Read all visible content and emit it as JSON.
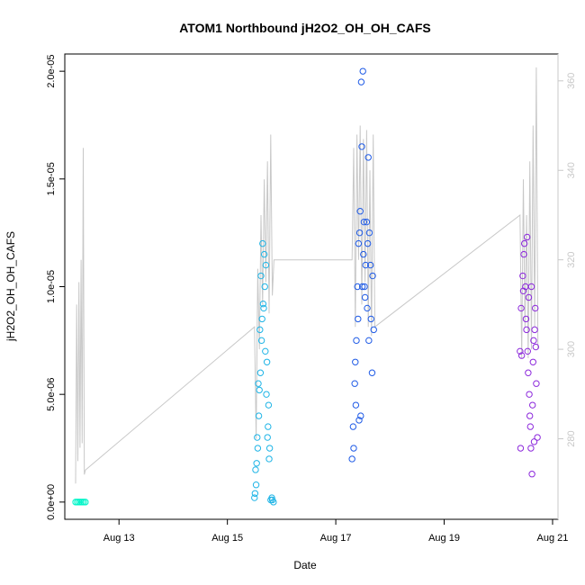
{
  "chart_data": {
    "type": "scatter",
    "title": "ATOM1 Northbound jH2O2_OH_OH_CAFS",
    "xlabel": "Date",
    "ylabel": "jH2O2_OH_OH_CAFS",
    "x_ticks": [
      "Aug 13",
      "Aug 15",
      "Aug 17",
      "Aug 19",
      "Aug 21"
    ],
    "y_ticks": [
      "0.0e+00",
      "5.0e-06",
      "1.0e-05",
      "1.5e-05",
      "2.0e-05"
    ],
    "y_right_ticks": [
      "280",
      "300",
      "320",
      "340",
      "360"
    ],
    "xlim": [
      12.0,
      21.1
    ],
    "ylim": [
      -8e-07,
      2.08e-05
    ],
    "y_right_lim": [
      262,
      366
    ],
    "grid": false,
    "colors": {
      "axis": "#000000",
      "right_axis": "#c8c8c8",
      "line": "#c8c8c8"
    },
    "scatter_series": [
      {
        "color": "#00f5c8",
        "x": [
          12.2,
          12.23,
          12.26,
          12.29,
          12.32,
          12.35,
          12.38
        ],
        "y": [
          0,
          0,
          0,
          0,
          0,
          0,
          0
        ]
      },
      {
        "color": "#1eb4e6",
        "x": [
          15.5,
          15.52,
          15.55,
          15.57,
          15.6,
          15.62,
          15.65,
          15.67,
          15.7,
          15.72,
          15.75,
          15.77,
          15.8,
          15.82,
          15.85,
          15.51,
          15.56,
          15.61,
          15.66,
          15.71,
          15.76,
          15.53,
          15.58,
          15.63,
          15.68,
          15.73,
          15.78,
          15.83,
          15.54,
          15.59,
          15.64,
          15.69,
          15.74
        ],
        "y": [
          2e-07,
          1.5e-06,
          3e-06,
          5.5e-06,
          8e-06,
          1.05e-05,
          1.2e-05,
          9e-06,
          7e-06,
          5e-06,
          3.5e-06,
          2e-06,
          1e-07,
          2e-07,
          0,
          4e-07,
          2.5e-06,
          6e-06,
          9.2e-06,
          1.1e-05,
          4.5e-06,
          8e-07,
          4e-06,
          7.5e-06,
          1.15e-05,
          6.5e-06,
          2.5e-06,
          1e-07,
          1.8e-06,
          5.2e-06,
          8.5e-06,
          1e-05,
          3e-06
        ]
      },
      {
        "color": "#1e5ae6",
        "x": [
          17.3,
          17.32,
          17.35,
          17.38,
          17.4,
          17.42,
          17.45,
          17.48,
          17.5,
          17.52,
          17.55,
          17.58,
          17.6,
          17.62,
          17.65,
          17.68,
          17.7,
          17.33,
          17.37,
          17.41,
          17.44,
          17.47,
          17.51,
          17.54,
          17.57,
          17.61,
          17.64,
          17.67,
          17.46,
          17.49,
          17.36,
          17.43,
          17.53,
          17.59
        ],
        "y": [
          2e-06,
          3.5e-06,
          5.5e-06,
          7.5e-06,
          1e-05,
          1.2e-05,
          1.35e-05,
          1.65e-05,
          2e-05,
          1.3e-05,
          1.1e-05,
          9e-06,
          1.6e-05,
          1.25e-05,
          8.5e-06,
          1.05e-05,
          8e-06,
          2.5e-06,
          4.5e-06,
          8.5e-06,
          1.25e-05,
          1.95e-05,
          1.15e-05,
          9.5e-06,
          1.3e-05,
          7.5e-06,
          1.1e-05,
          6e-06,
          4e-06,
          1e-05,
          6.5e-06,
          3.8e-06,
          1e-05,
          1.2e-05
        ]
      },
      {
        "color": "#8c28dc",
        "x": [
          20.4,
          20.42,
          20.45,
          20.48,
          20.5,
          20.52,
          20.55,
          20.58,
          20.6,
          20.62,
          20.65,
          20.68,
          20.7,
          20.72,
          20.43,
          20.47,
          20.51,
          20.54,
          20.57,
          20.61,
          20.64,
          20.67,
          20.46,
          20.53,
          20.59,
          20.63,
          20.69,
          20.41,
          20.56,
          20.66
        ],
        "y": [
          7e-06,
          9e-06,
          1.05e-05,
          1.2e-05,
          1e-05,
          8e-06,
          6e-06,
          4e-06,
          2.5e-06,
          1.3e-06,
          7.5e-06,
          9e-06,
          5.5e-06,
          3e-06,
          6.8e-06,
          1.15e-05,
          8.5e-06,
          7e-06,
          5e-06,
          1e-05,
          6.5e-06,
          8e-06,
          9.8e-06,
          1.23e-05,
          3.5e-06,
          4.5e-06,
          7.2e-06,
          2.5e-06,
          9.5e-06,
          2.8e-06
        ]
      }
    ],
    "line_series": {
      "color": "#c8c8c8",
      "axis": "right",
      "x": [
        12.2,
        12.22,
        12.24,
        12.26,
        12.28,
        12.3,
        12.32,
        12.34,
        12.36,
        12.38,
        15.5,
        15.53,
        15.56,
        15.59,
        15.62,
        15.65,
        15.68,
        15.71,
        15.74,
        15.77,
        15.8,
        15.83,
        15.86,
        17.3,
        17.33,
        17.36,
        17.39,
        17.42,
        17.45,
        17.48,
        17.51,
        17.54,
        17.57,
        17.6,
        17.63,
        17.66,
        17.69,
        17.72,
        20.4,
        20.43,
        20.46,
        20.49,
        20.52,
        20.55,
        20.58,
        20.61,
        20.64,
        20.67,
        20.7,
        20.73
      ],
      "y": [
        270,
        310,
        275,
        315,
        278,
        320,
        279,
        345,
        272,
        273,
        305,
        280,
        318,
        300,
        330,
        310,
        338,
        315,
        342,
        308,
        348,
        312,
        320,
        320,
        345,
        305,
        348,
        320,
        350,
        310,
        347,
        315,
        349,
        305,
        340,
        303,
        348,
        305,
        330,
        298,
        338,
        305,
        330,
        298,
        342,
        300,
        350,
        305,
        363,
        300
      ]
    }
  }
}
